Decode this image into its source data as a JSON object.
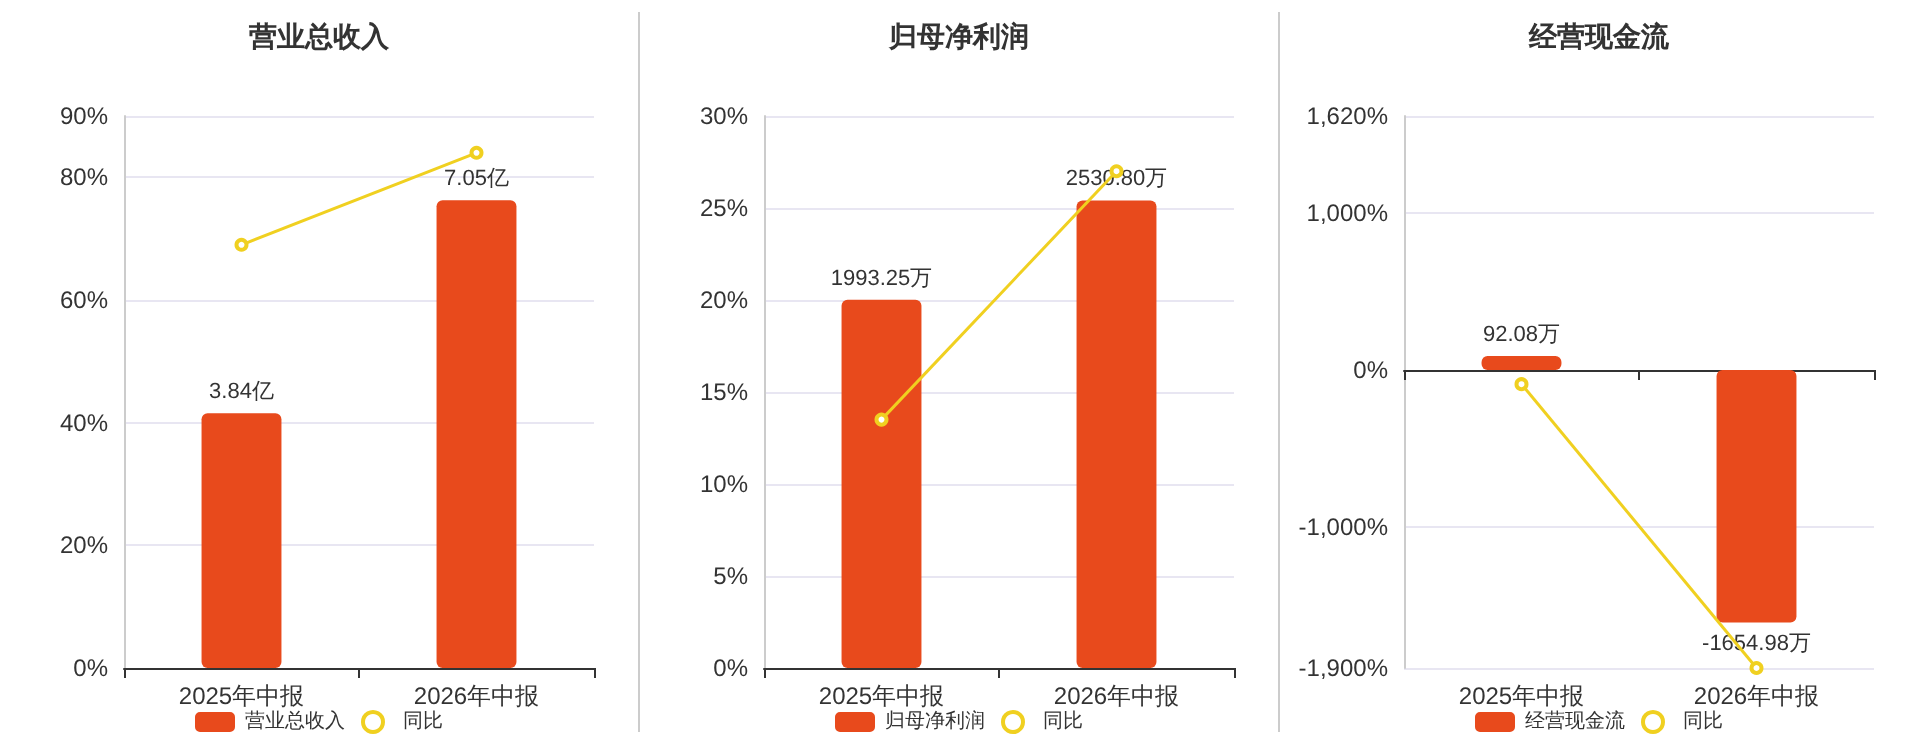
{
  "chart_data": [
    {
      "type": "bar",
      "title": "营业总收入",
      "categories": [
        "2025年中报",
        "2026年中报"
      ],
      "series": [
        {
          "name": "营业总收入",
          "axis": "y2",
          "color": "#e84a1c",
          "values": [
            3.84,
            7.05
          ],
          "value_labels": [
            "3.84亿",
            "7.05亿"
          ]
        },
        {
          "name": "同比",
          "type": "line",
          "color": "#f0d020",
          "values": [
            69,
            84
          ]
        }
      ],
      "ylim": [
        0,
        90
      ],
      "yticks": [
        {
          "value": 0,
          "label": "0%"
        },
        {
          "value": 20,
          "label": "20%"
        },
        {
          "value": 40,
          "label": "40%"
        },
        {
          "value": 60,
          "label": "60%"
        },
        {
          "value": 80,
          "label": "80%"
        },
        {
          "value": 90,
          "label": "90%"
        }
      ],
      "y2lim": [
        0,
        8.32
      ],
      "grid": "y",
      "legend": "bottom",
      "marker": "circle"
    },
    {
      "type": "bar",
      "title": "归母净利润",
      "categories": [
        "2025年中报",
        "2026年中报"
      ],
      "series": [
        {
          "name": "归母净利润",
          "axis": "y2",
          "color": "#e84a1c",
          "values": [
            1993.25,
            2530.8
          ],
          "value_labels": [
            "1993.25万",
            "2530.80万"
          ]
        },
        {
          "name": "同比",
          "type": "line",
          "color": "#f0d020",
          "values": [
            13.5,
            27
          ]
        }
      ],
      "ylim": [
        0,
        30
      ],
      "yticks": [
        {
          "value": 0,
          "label": "0%"
        },
        {
          "value": 5,
          "label": "5%"
        },
        {
          "value": 10,
          "label": "10%"
        },
        {
          "value": 15,
          "label": "15%"
        },
        {
          "value": 20,
          "label": "20%"
        },
        {
          "value": 25,
          "label": "25%"
        },
        {
          "value": 30,
          "label": "30%"
        }
      ],
      "y2lim": [
        0,
        2988
      ],
      "grid": "y",
      "legend": "bottom",
      "marker": "circle"
    },
    {
      "type": "bar",
      "title": "经营现金流",
      "categories": [
        "2025年中报",
        "2026年中报"
      ],
      "series": [
        {
          "name": "经营现金流",
          "axis": "y2",
          "color": "#e84a1c",
          "values": [
            92.08,
            -1654.98
          ],
          "value_labels": [
            "92.08万",
            "-1654.98万"
          ]
        },
        {
          "name": "同比",
          "type": "line",
          "color": "#f0d020",
          "values": [
            -90,
            -1900
          ]
        }
      ],
      "ylim": [
        -1900,
        1620
      ],
      "yticks": [
        {
          "value": -1900,
          "label": "-1,900%"
        },
        {
          "value": -1000,
          "label": "-1,000%"
        },
        {
          "value": 0,
          "label": "0%"
        },
        {
          "value": 1000,
          "label": "1,000%"
        },
        {
          "value": 1620,
          "label": "1,620%"
        }
      ],
      "y2lim": [
        -1953,
        1665
      ],
      "grid": "y",
      "legend": "bottom",
      "marker": "circle"
    }
  ]
}
